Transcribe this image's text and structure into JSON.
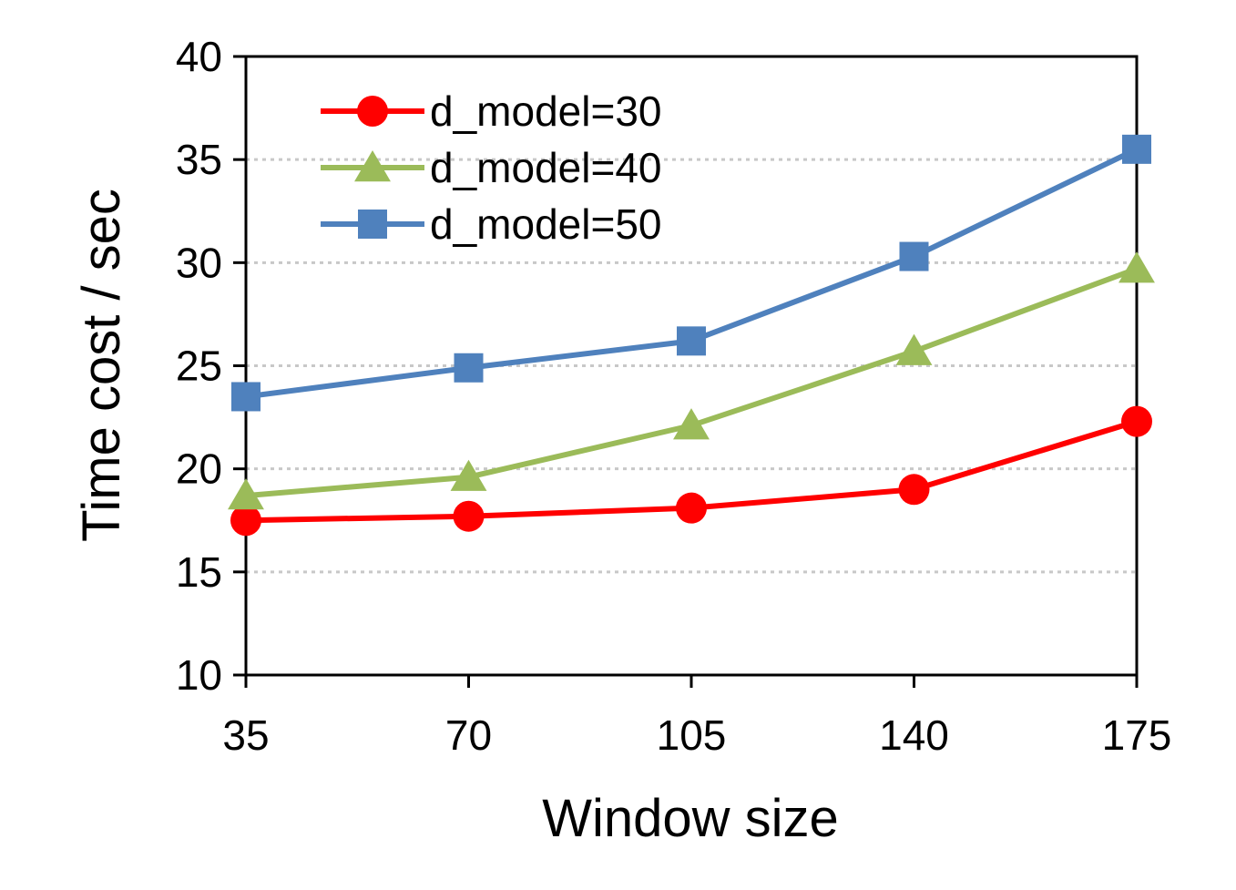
{
  "chart_data": {
    "type": "line",
    "title": "",
    "xlabel": "Window size",
    "ylabel": "Time cost / sec",
    "x": [
      35,
      70,
      105,
      140,
      175
    ],
    "ylim": [
      10,
      40
    ],
    "yticks": [
      10,
      15,
      20,
      25,
      30,
      35,
      40
    ],
    "grid": "horizontal dotted",
    "legend_position": "top-left",
    "series": [
      {
        "name": "d_model=30",
        "values": [
          17.5,
          17.7,
          18.1,
          19.0,
          22.3
        ],
        "color": "#ff0000",
        "marker": "circle"
      },
      {
        "name": "d_model=40",
        "values": [
          18.7,
          19.6,
          22.1,
          25.7,
          29.7
        ],
        "color": "#9bbb59",
        "marker": "triangle"
      },
      {
        "name": "d_model=50",
        "values": [
          23.5,
          24.9,
          26.2,
          30.3,
          35.5
        ],
        "color": "#4f81bd",
        "marker": "square"
      }
    ]
  }
}
